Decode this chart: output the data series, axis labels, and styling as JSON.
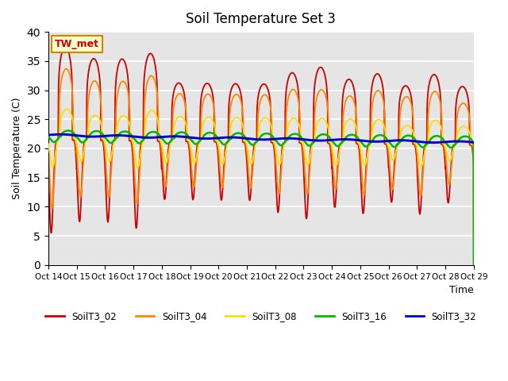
{
  "title": "Soil Temperature Set 3",
  "xlabel": "Time",
  "ylabel": "Soil Temperature (C)",
  "ylim": [
    0,
    40
  ],
  "series_labels": [
    "SoilT3_02",
    "SoilT3_04",
    "SoilT3_08",
    "SoilT3_16",
    "SoilT3_32"
  ],
  "series_colors": [
    "#cc0000",
    "#ff8800",
    "#ffdd00",
    "#00bb00",
    "#0000cc"
  ],
  "annotation_text": "TW_met",
  "annotation_color": "#cc0000",
  "annotation_bg": "#ffffcc",
  "annotation_edge": "#cc8800",
  "background_color": "#e5e5e5",
  "grid_color": "#ffffff",
  "num_days": 15,
  "xtick_labels": [
    "Oct 14",
    "Oct 15",
    "Oct 16",
    "Oct 17",
    "Oct 18",
    "Oct 19",
    "Oct 20",
    "Oct 21",
    "Oct 22",
    "Oct 23",
    "Oct 24",
    "Oct 25",
    "Oct 26",
    "Oct 27",
    "Oct 28",
    "Oct 29"
  ],
  "ytick_positions": [
    0,
    5,
    10,
    15,
    20,
    25,
    30,
    35,
    40
  ]
}
